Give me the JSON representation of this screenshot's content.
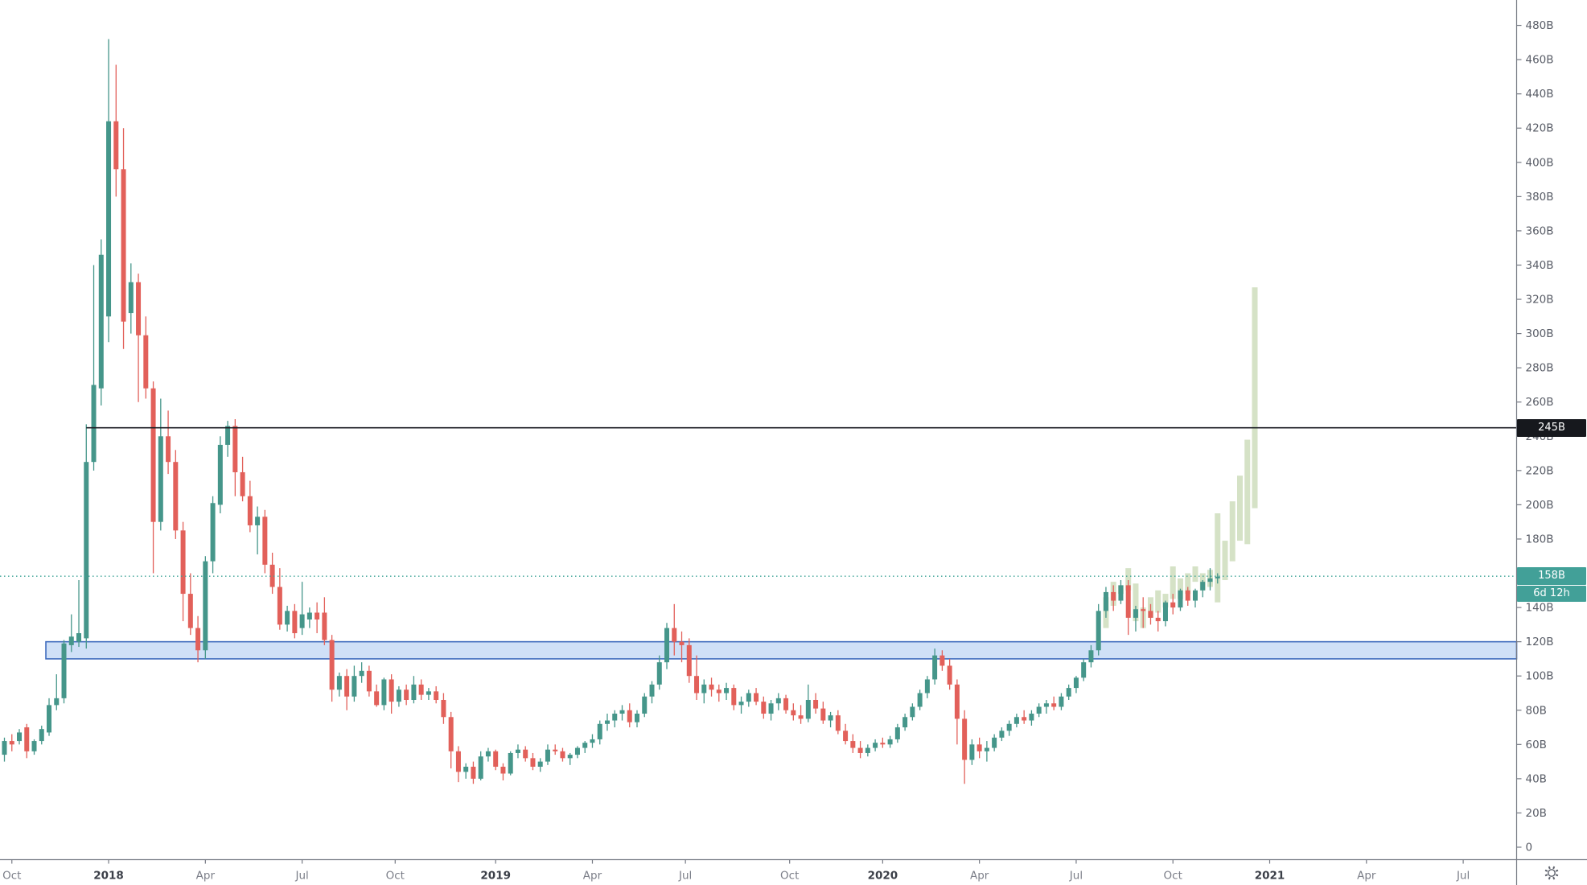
{
  "colors": {
    "up": "#45968a",
    "down": "#e2605a",
    "ghost": "#d5e2c6",
    "band_fill": "#cfe0f7",
    "band_border": "#3e6bbd",
    "level_line": "#1c1e24",
    "current_line": "#3aa295",
    "axis_line": "#767a84",
    "tick_text": "#585c66",
    "month_text": "#7b7e88",
    "year_text": "#3a3e47",
    "label_level_bg": "#16181d",
    "label_current_bg": "#42a098",
    "label_text": "#ffffff",
    "gear_icon": "#5d616b"
  },
  "y_axis": {
    "suffix": "B",
    "tick_min": 0,
    "tick_max": 480,
    "tick_step": 20
  },
  "x_axis": {
    "labels": [
      {
        "text": "Oct",
        "bar": 1,
        "bold": false
      },
      {
        "text": "2018",
        "bar": 14,
        "bold": true
      },
      {
        "text": "Apr",
        "bar": 27,
        "bold": false
      },
      {
        "text": "Jul",
        "bar": 40,
        "bold": false
      },
      {
        "text": "Oct",
        "bar": 52.5,
        "bold": false
      },
      {
        "text": "2019",
        "bar": 66,
        "bold": true
      },
      {
        "text": "Apr",
        "bar": 79,
        "bold": false
      },
      {
        "text": "Jul",
        "bar": 91.5,
        "bold": false
      },
      {
        "text": "Oct",
        "bar": 105.5,
        "bold": false
      },
      {
        "text": "2020",
        "bar": 118,
        "bold": true
      },
      {
        "text": "Apr",
        "bar": 131,
        "bold": false
      },
      {
        "text": "Jul",
        "bar": 144,
        "bold": false
      },
      {
        "text": "Oct",
        "bar": 157,
        "bold": false
      },
      {
        "text": "2021",
        "bar": 170,
        "bold": true
      },
      {
        "text": "Apr",
        "bar": 183,
        "bold": false
      },
      {
        "text": "Jul",
        "bar": 196,
        "bold": false
      }
    ]
  },
  "price_labels": {
    "level": {
      "text": "245B",
      "value": 245
    },
    "current": {
      "text": "158B",
      "value": 158.3
    },
    "countdown": {
      "text": "6d 12h"
    }
  },
  "chart_data": {
    "type": "candlestick",
    "timeframe": "weekly",
    "unit": "billions",
    "ylim": [
      0,
      495
    ],
    "grid": false,
    "level_line": {
      "price": 245,
      "from_bar": 11,
      "style": "solid"
    },
    "current_line": {
      "price": 158.3,
      "from_bar": 0,
      "style": "dotted"
    },
    "band": {
      "price_top": 120,
      "price_bottom": 110,
      "from_bar": 6
    },
    "candles": [
      [
        54,
        64,
        50,
        62
      ],
      [
        62,
        66,
        56,
        60
      ],
      [
        62,
        69,
        60,
        67
      ],
      [
        70,
        72,
        52,
        56
      ],
      [
        56,
        63,
        54,
        62
      ],
      [
        62,
        71,
        60,
        69
      ],
      [
        67,
        87,
        65,
        83
      ],
      [
        83,
        101,
        80,
        87
      ],
      [
        87,
        121,
        84,
        119
      ],
      [
        118,
        136,
        114,
        123
      ],
      [
        120,
        156,
        117,
        125
      ],
      [
        122,
        247,
        116,
        225
      ],
      [
        225,
        340,
        220,
        270
      ],
      [
        268,
        355,
        258,
        346
      ],
      [
        310,
        472,
        295,
        424
      ],
      [
        424,
        457,
        380,
        396
      ],
      [
        396,
        420,
        291,
        307
      ],
      [
        312,
        341,
        300,
        330
      ],
      [
        330,
        335,
        260,
        299
      ],
      [
        299,
        310,
        262,
        268
      ],
      [
        268,
        272,
        160,
        190
      ],
      [
        190,
        262,
        185,
        240
      ],
      [
        240,
        255,
        218,
        225
      ],
      [
        225,
        232,
        180,
        185
      ],
      [
        185,
        190,
        132,
        148
      ],
      [
        148,
        160,
        124,
        128
      ],
      [
        128,
        135,
        108,
        115
      ],
      [
        115,
        170,
        110,
        167
      ],
      [
        167,
        205,
        160,
        201
      ],
      [
        200,
        240,
        195,
        235
      ],
      [
        235,
        249,
        228,
        246
      ],
      [
        246,
        250,
        205,
        219
      ],
      [
        219,
        228,
        202,
        205
      ],
      [
        205,
        214,
        184,
        188
      ],
      [
        188,
        199,
        171,
        193
      ],
      [
        193,
        197,
        160,
        165
      ],
      [
        165,
        172,
        148,
        152
      ],
      [
        152,
        163,
        127,
        130
      ],
      [
        130,
        141,
        126,
        138
      ],
      [
        138,
        142,
        122,
        125
      ],
      [
        128,
        155,
        124,
        136
      ],
      [
        133,
        140,
        128,
        137
      ],
      [
        137,
        143,
        125,
        133
      ],
      [
        137,
        146,
        118,
        121
      ],
      [
        121,
        124,
        85,
        92
      ],
      [
        92,
        102,
        88,
        100
      ],
      [
        100,
        104,
        80,
        88
      ],
      [
        88,
        106,
        85,
        100
      ],
      [
        100,
        108,
        96,
        103
      ],
      [
        103,
        106,
        88,
        91
      ],
      [
        91,
        95,
        82,
        83
      ],
      [
        83,
        99,
        80,
        98
      ],
      [
        98,
        101,
        78,
        85
      ],
      [
        85,
        94,
        82,
        92
      ],
      [
        92,
        95,
        83,
        86
      ],
      [
        86,
        100,
        84,
        95
      ],
      [
        95,
        98,
        86,
        89
      ],
      [
        89,
        93,
        86,
        91
      ],
      [
        91,
        94,
        84,
        86
      ],
      [
        86,
        90,
        72,
        76
      ],
      [
        76,
        79,
        46,
        56
      ],
      [
        56,
        59,
        38,
        44
      ],
      [
        44,
        49,
        40,
        47
      ],
      [
        47,
        50,
        37,
        40
      ],
      [
        40,
        56,
        39,
        53
      ],
      [
        53,
        58,
        50,
        56
      ],
      [
        56,
        57,
        45,
        47
      ],
      [
        47,
        49,
        39,
        43
      ],
      [
        43,
        56,
        42,
        55
      ],
      [
        55,
        60,
        52,
        57
      ],
      [
        57,
        59,
        50,
        52
      ],
      [
        52,
        55,
        45,
        47
      ],
      [
        47,
        52,
        44,
        50
      ],
      [
        50,
        60,
        48,
        57
      ],
      [
        57,
        60,
        54,
        56
      ],
      [
        56,
        58,
        50,
        52
      ],
      [
        52,
        55,
        48,
        54
      ],
      [
        54,
        59,
        52,
        58
      ],
      [
        58,
        62,
        55,
        61
      ],
      [
        61,
        66,
        58,
        63
      ],
      [
        63,
        74,
        60,
        72
      ],
      [
        72,
        78,
        68,
        74
      ],
      [
        74,
        80,
        70,
        78
      ],
      [
        78,
        83,
        74,
        80
      ],
      [
        80,
        84,
        70,
        73
      ],
      [
        73,
        80,
        70,
        78
      ],
      [
        78,
        90,
        76,
        88
      ],
      [
        88,
        97,
        84,
        95
      ],
      [
        95,
        112,
        92,
        108
      ],
      [
        108,
        131,
        104,
        128
      ],
      [
        128,
        142,
        112,
        120
      ],
      [
        120,
        126,
        108,
        118
      ],
      [
        118,
        122,
        96,
        100
      ],
      [
        100,
        112,
        86,
        90
      ],
      [
        90,
        98,
        84,
        95
      ],
      [
        95,
        99,
        88,
        92
      ],
      [
        92,
        95,
        85,
        90
      ],
      [
        90,
        96,
        86,
        93
      ],
      [
        93,
        95,
        80,
        83
      ],
      [
        83,
        88,
        78,
        85
      ],
      [
        85,
        92,
        82,
        90
      ],
      [
        90,
        93,
        83,
        85
      ],
      [
        85,
        88,
        75,
        78
      ],
      [
        78,
        86,
        74,
        84
      ],
      [
        84,
        90,
        80,
        87
      ],
      [
        87,
        89,
        78,
        80
      ],
      [
        80,
        84,
        74,
        77
      ],
      [
        77,
        83,
        72,
        75
      ],
      [
        75,
        95,
        73,
        86
      ],
      [
        86,
        90,
        78,
        81
      ],
      [
        81,
        85,
        72,
        74
      ],
      [
        74,
        79,
        70,
        77
      ],
      [
        77,
        80,
        66,
        68
      ],
      [
        68,
        72,
        60,
        62
      ],
      [
        62,
        66,
        55,
        58
      ],
      [
        58,
        62,
        52,
        55
      ],
      [
        55,
        60,
        53,
        58
      ],
      [
        58,
        63,
        56,
        61
      ],
      [
        61,
        64,
        58,
        60
      ],
      [
        60,
        65,
        58,
        63
      ],
      [
        63,
        72,
        61,
        70
      ],
      [
        70,
        78,
        68,
        76
      ],
      [
        76,
        84,
        74,
        82
      ],
      [
        82,
        92,
        80,
        90
      ],
      [
        90,
        100,
        87,
        98
      ],
      [
        98,
        116,
        95,
        112
      ],
      [
        112,
        115,
        103,
        106
      ],
      [
        106,
        110,
        92,
        95
      ],
      [
        95,
        98,
        60,
        75
      ],
      [
        75,
        80,
        37,
        51
      ],
      [
        51,
        63,
        48,
        60
      ],
      [
        60,
        64,
        52,
        56
      ],
      [
        56,
        62,
        50,
        58
      ],
      [
        58,
        66,
        56,
        64
      ],
      [
        64,
        70,
        62,
        68
      ],
      [
        68,
        74,
        65,
        72
      ],
      [
        72,
        78,
        70,
        76
      ],
      [
        76,
        80,
        72,
        74
      ],
      [
        74,
        80,
        71,
        78
      ],
      [
        78,
        84,
        76,
        82
      ],
      [
        82,
        86,
        78,
        84
      ],
      [
        84,
        88,
        80,
        82
      ],
      [
        82,
        90,
        80,
        88
      ],
      [
        88,
        95,
        86,
        93
      ],
      [
        93,
        100,
        90,
        99
      ],
      [
        99,
        110,
        97,
        108
      ],
      [
        108,
        118,
        105,
        115
      ],
      [
        115,
        142,
        112,
        138
      ],
      [
        138,
        152,
        134,
        149
      ],
      [
        149,
        153,
        138,
        144
      ],
      [
        144,
        156,
        142,
        153
      ],
      [
        153,
        156,
        124,
        134
      ],
      [
        134,
        141,
        126,
        139
      ],
      [
        139,
        146,
        128,
        138
      ],
      [
        138,
        142,
        130,
        134
      ],
      [
        134,
        138,
        126,
        132
      ],
      [
        132,
        144,
        129,
        143
      ],
      [
        143,
        148,
        136,
        140
      ],
      [
        140,
        151,
        138,
        150
      ],
      [
        150,
        152,
        141,
        144
      ],
      [
        144,
        151,
        140,
        150
      ],
      [
        150,
        156,
        146,
        155
      ],
      [
        155,
        163,
        150,
        157
      ],
      [
        157,
        160,
        154,
        158
      ]
    ],
    "ghost_bars": {
      "start_bar": 148,
      "bodies": [
        [
          128,
          146
        ],
        [
          141,
          155
        ],
        [
          148,
          153
        ],
        [
          150,
          163
        ],
        [
          132,
          154
        ],
        [
          128,
          140
        ],
        [
          134,
          146
        ],
        [
          137,
          150
        ],
        [
          140,
          148
        ],
        [
          145,
          164
        ],
        [
          145,
          157
        ],
        [
          148,
          160
        ],
        [
          155,
          164
        ],
        [
          150,
          160
        ],
        [
          152,
          162
        ],
        [
          143,
          195
        ],
        [
          156,
          179
        ],
        [
          167,
          202
        ],
        [
          179,
          217
        ],
        [
          177,
          238
        ],
        [
          198,
          327
        ]
      ]
    }
  }
}
